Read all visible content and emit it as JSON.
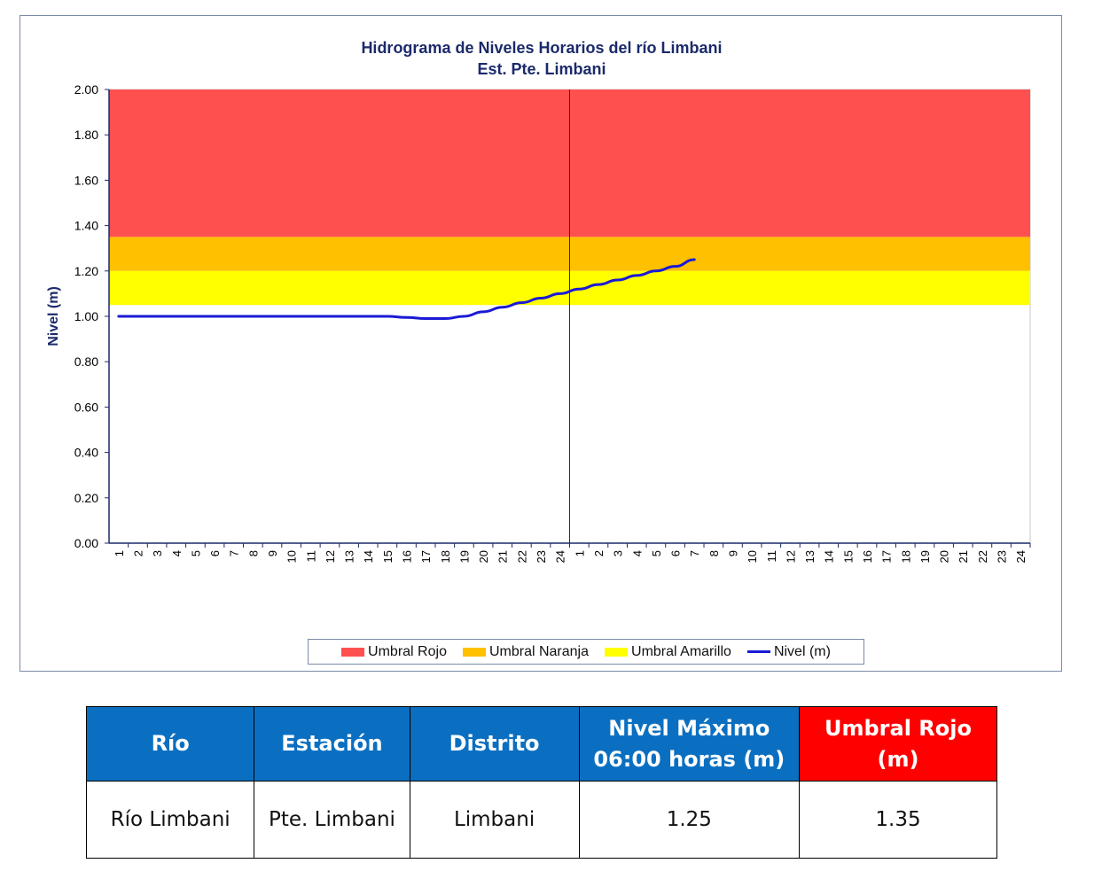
{
  "chart_data": {
    "type": "line",
    "title": [
      "Hidrograma de Niveles Horarios del río Limbani",
      "Est. Pte. Limbani"
    ],
    "ylabel": "Nivel (m)",
    "xlabel": "",
    "ylim": [
      0,
      2
    ],
    "yticks": [
      "0.00",
      "0.20",
      "0.40",
      "0.60",
      "0.80",
      "1.00",
      "1.20",
      "1.40",
      "1.60",
      "1.80",
      "2.00"
    ],
    "x_labels": [
      "1",
      "2",
      "3",
      "4",
      "5",
      "6",
      "7",
      "8",
      "9",
      "10",
      "11",
      "12",
      "13",
      "14",
      "15",
      "16",
      "17",
      "18",
      "19",
      "20",
      "21",
      "22",
      "23",
      "24",
      "1",
      "2",
      "3",
      "4",
      "5",
      "6",
      "7",
      "8",
      "9",
      "10",
      "11",
      "12",
      "13",
      "14",
      "15",
      "16",
      "17",
      "18",
      "19",
      "20",
      "21",
      "22",
      "23",
      "24"
    ],
    "day_divider_after_index": 23,
    "bands": [
      {
        "name": "Umbral Rojo",
        "from": 1.35,
        "to": 2.0,
        "color": "#ff5050"
      },
      {
        "name": "Umbral Naranja",
        "from": 1.2,
        "to": 1.35,
        "color": "#ffc000"
      },
      {
        "name": "Umbral Amarillo",
        "from": 1.05,
        "to": 1.2,
        "color": "#ffff00"
      }
    ],
    "series": [
      {
        "name": "Nivel (m)",
        "color": "#1a1ad6",
        "values": [
          1.0,
          1.0,
          1.0,
          1.0,
          1.0,
          1.0,
          1.0,
          1.0,
          1.0,
          1.0,
          1.0,
          1.0,
          1.0,
          1.0,
          1.0,
          0.995,
          0.99,
          0.99,
          1.0,
          1.02,
          1.04,
          1.06,
          1.08,
          1.1,
          1.12,
          1.14,
          1.16,
          1.18,
          1.2,
          1.22,
          1.25
        ]
      }
    ],
    "legend": [
      "Umbral Rojo",
      "Umbral Naranja",
      "Umbral Amarillo",
      "Nivel (m)"
    ],
    "legend_position": "bottom"
  },
  "table": {
    "headers": [
      {
        "lines": [
          "Río"
        ],
        "color": "#0b6fc1"
      },
      {
        "lines": [
          "Estación"
        ],
        "color": "#0b6fc1"
      },
      {
        "lines": [
          "Distrito"
        ],
        "color": "#0b6fc1"
      },
      {
        "lines": [
          "Nivel Máximo",
          "06:00 horas (m)"
        ],
        "color": "#0b6fc1"
      },
      {
        "lines": [
          "Umbral Rojo",
          "(m)"
        ],
        "color": "#ff0000"
      }
    ],
    "row": [
      "Río Limbani",
      "Pte. Limbani",
      "Limbani",
      "1.25",
      "1.35"
    ]
  }
}
